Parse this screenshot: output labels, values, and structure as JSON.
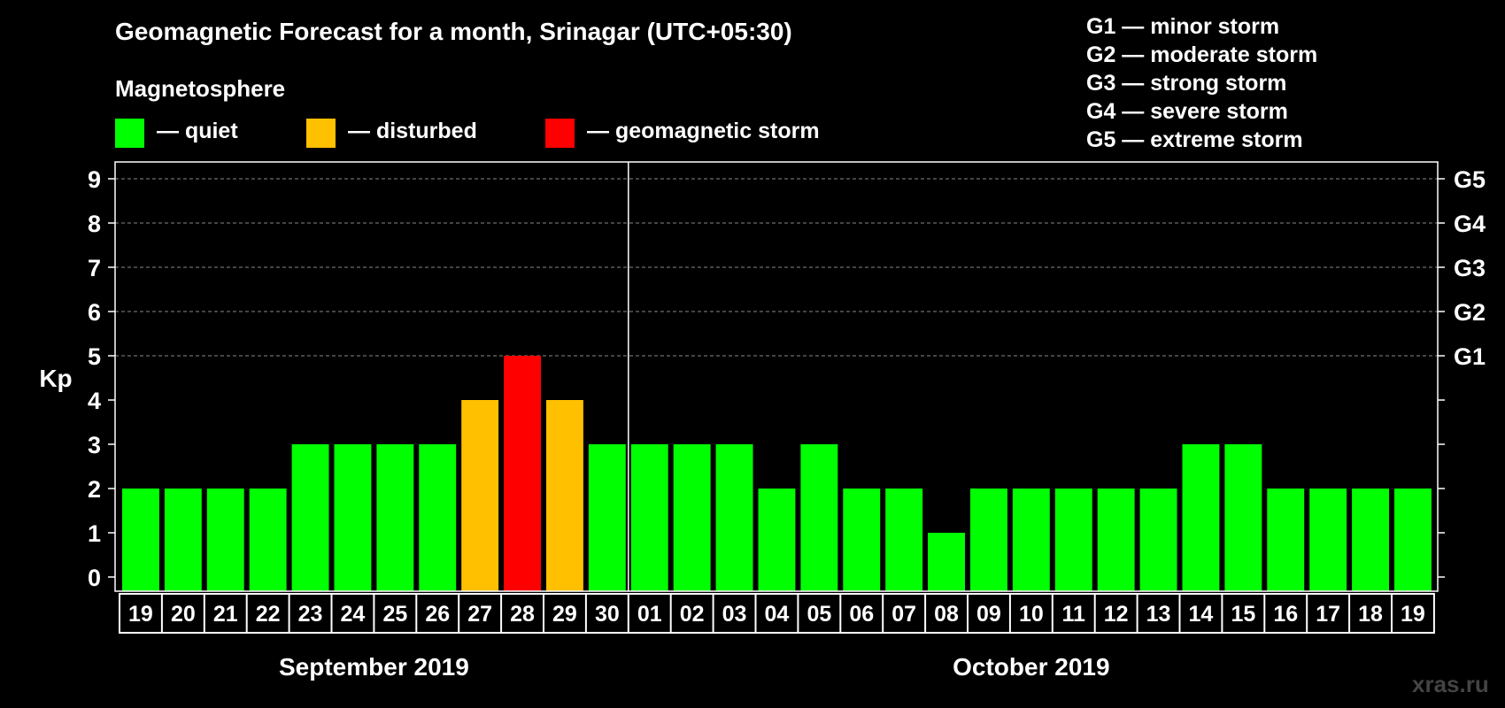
{
  "title": "Geomagnetic Forecast for a month, Srinagar (UTC+05:30)",
  "legend": {
    "heading": "Magnetosphere",
    "items": [
      {
        "label": "— quiet",
        "color": "#00ff00"
      },
      {
        "label": "— disturbed",
        "color": "#ffc000"
      },
      {
        "label": "— geomagnetic storm",
        "color": "#ff0000"
      }
    ]
  },
  "g_scale": [
    "G1 — minor storm",
    "G2 — moderate storm",
    "G3 — strong storm",
    "G4 — severe storm",
    "G5 — extreme storm"
  ],
  "watermark": "xras.ru",
  "chart_data": {
    "type": "bar",
    "ylabel": "Kp",
    "ylim": [
      0,
      9
    ],
    "yticks": [
      "0",
      "1",
      "2",
      "3",
      "4",
      "5",
      "6",
      "7",
      "8",
      "9"
    ],
    "right_labels": [
      {
        "kp": 5,
        "label": "G1"
      },
      {
        "kp": 6,
        "label": "G2"
      },
      {
        "kp": 7,
        "label": "G3"
      },
      {
        "kp": 8,
        "label": "G4"
      },
      {
        "kp": 9,
        "label": "G5"
      }
    ],
    "categories": [
      "19",
      "20",
      "21",
      "22",
      "23",
      "24",
      "25",
      "26",
      "27",
      "28",
      "29",
      "30",
      "01",
      "02",
      "03",
      "04",
      "05",
      "06",
      "07",
      "08",
      "09",
      "10",
      "11",
      "12",
      "13",
      "14",
      "15",
      "16",
      "17",
      "18",
      "19"
    ],
    "values": [
      2,
      2,
      2,
      2,
      3,
      3,
      3,
      3,
      4,
      5,
      4,
      3,
      3,
      3,
      3,
      2,
      3,
      2,
      2,
      1,
      2,
      2,
      2,
      2,
      2,
      3,
      3,
      2,
      2,
      2,
      2
    ],
    "months": [
      {
        "label": "September 2019",
        "first_index": 0,
        "last_index": 11
      },
      {
        "label": "October 2019",
        "first_index": 12,
        "last_index": 30
      }
    ],
    "color_thresholds": {
      "quiet_max": 3,
      "disturbed_max": 4
    },
    "colors": {
      "quiet": "#00ff00",
      "disturbed": "#ffc000",
      "storm": "#ff0000"
    }
  }
}
